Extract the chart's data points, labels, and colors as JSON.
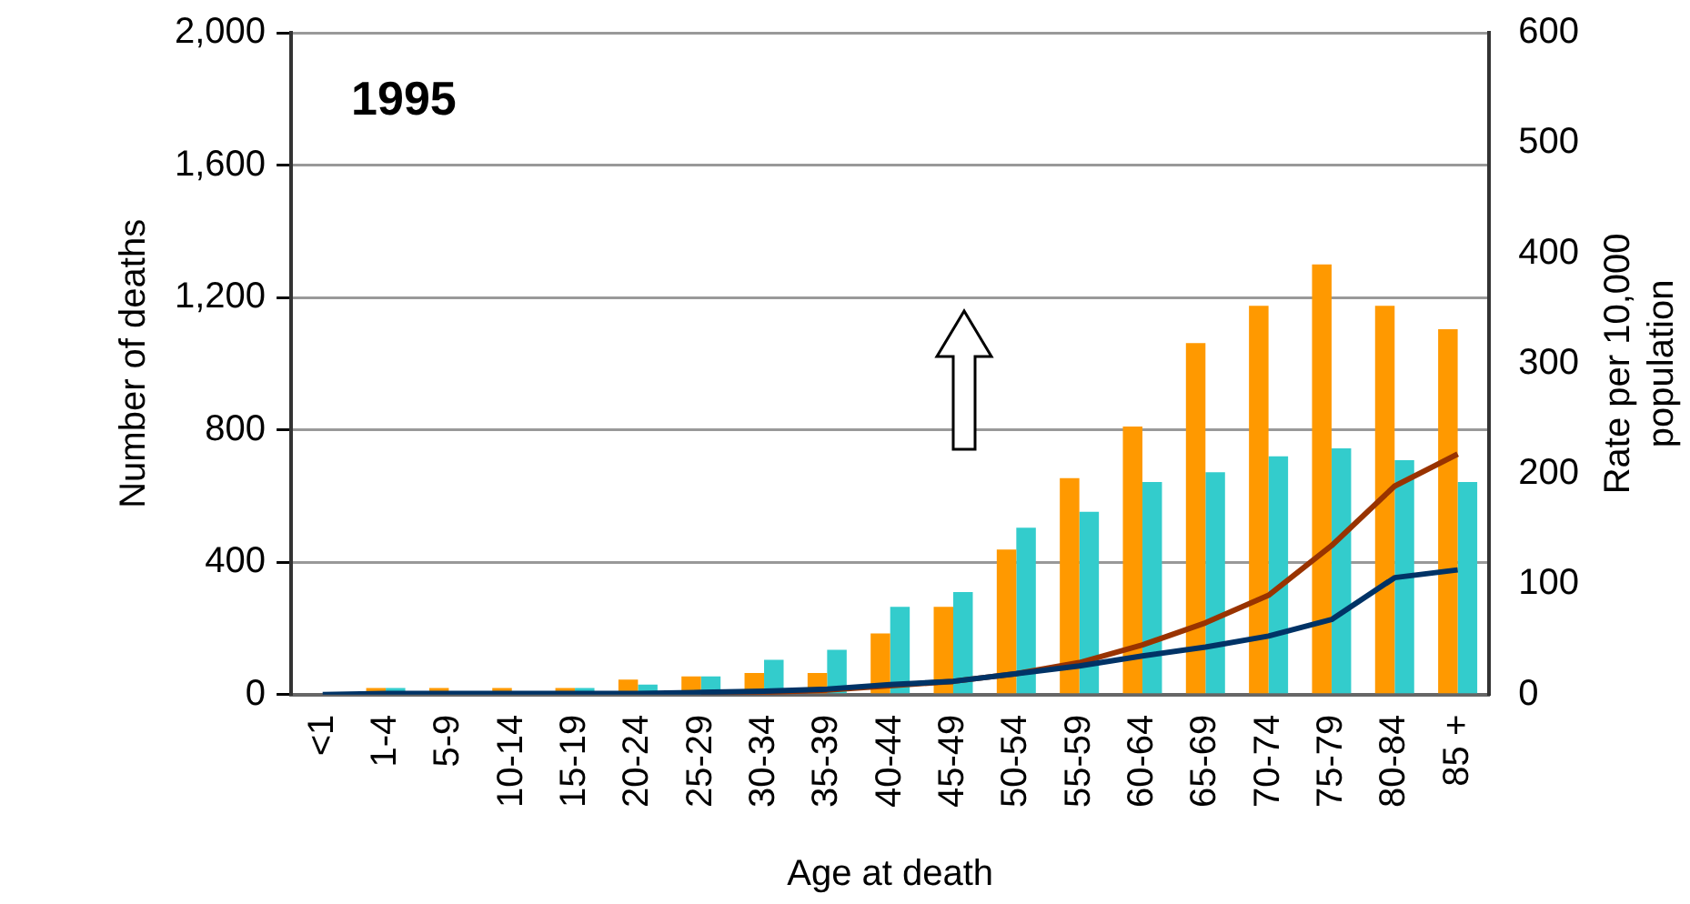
{
  "chart_data": {
    "type": "bar",
    "title": "1995",
    "xlabel": "Age at death",
    "ylabel": "Number of deaths",
    "y2label": "Rate per 10,000 population",
    "categories": [
      "<1",
      "1-4",
      "5-9",
      "10-14",
      "15-19",
      "20-24",
      "25-29",
      "30-34",
      "35-39",
      "40-44",
      "45-49",
      "50-54",
      "55-59",
      "60-64",
      "65-69",
      "70-74",
      "75-79",
      "80-84",
      "85 +"
    ],
    "series": [
      {
        "color": "#ff9900",
        "values": [
          0,
          20,
          20,
          20,
          20,
          45,
          55,
          65,
          65,
          185,
          265,
          438,
          654,
          810,
          1062,
          1175,
          1300,
          1175,
          1104
        ]
      },
      {
        "color": "#33cccc",
        "values": [
          0,
          20,
          0,
          0,
          20,
          30,
          55,
          105,
          135,
          265,
          310,
          504,
          552,
          642,
          672,
          720,
          744,
          708,
          642
        ]
      },
      {
        "type": "line",
        "axis": "y2",
        "color": "#993300",
        "values": [
          null,
          null,
          null,
          null,
          null,
          null,
          1,
          2,
          4,
          8,
          12,
          19,
          29,
          45,
          65,
          90,
          135,
          189,
          218
        ]
      },
      {
        "type": "line",
        "axis": "y2",
        "color": "#003366",
        "values": [
          0,
          1,
          1,
          1,
          1,
          1,
          2,
          3,
          5,
          9,
          12,
          19,
          26,
          35,
          43,
          53,
          68,
          106,
          113
        ]
      }
    ],
    "ylim": [
      0,
      2000
    ],
    "yticks": [
      {
        "value": 0,
        "label": "0"
      },
      {
        "value": 400,
        "label": "400"
      },
      {
        "value": 800,
        "label": "800"
      },
      {
        "value": 1200,
        "label": "1,200"
      },
      {
        "value": 1600,
        "label": "1,600"
      },
      {
        "value": 2000,
        "label": "2,000"
      }
    ],
    "y2lim": [
      0,
      600
    ],
    "y2ticks": [
      0,
      100,
      200,
      300,
      400,
      500,
      600
    ],
    "grid": "y",
    "legend": false,
    "marker": "none"
  }
}
